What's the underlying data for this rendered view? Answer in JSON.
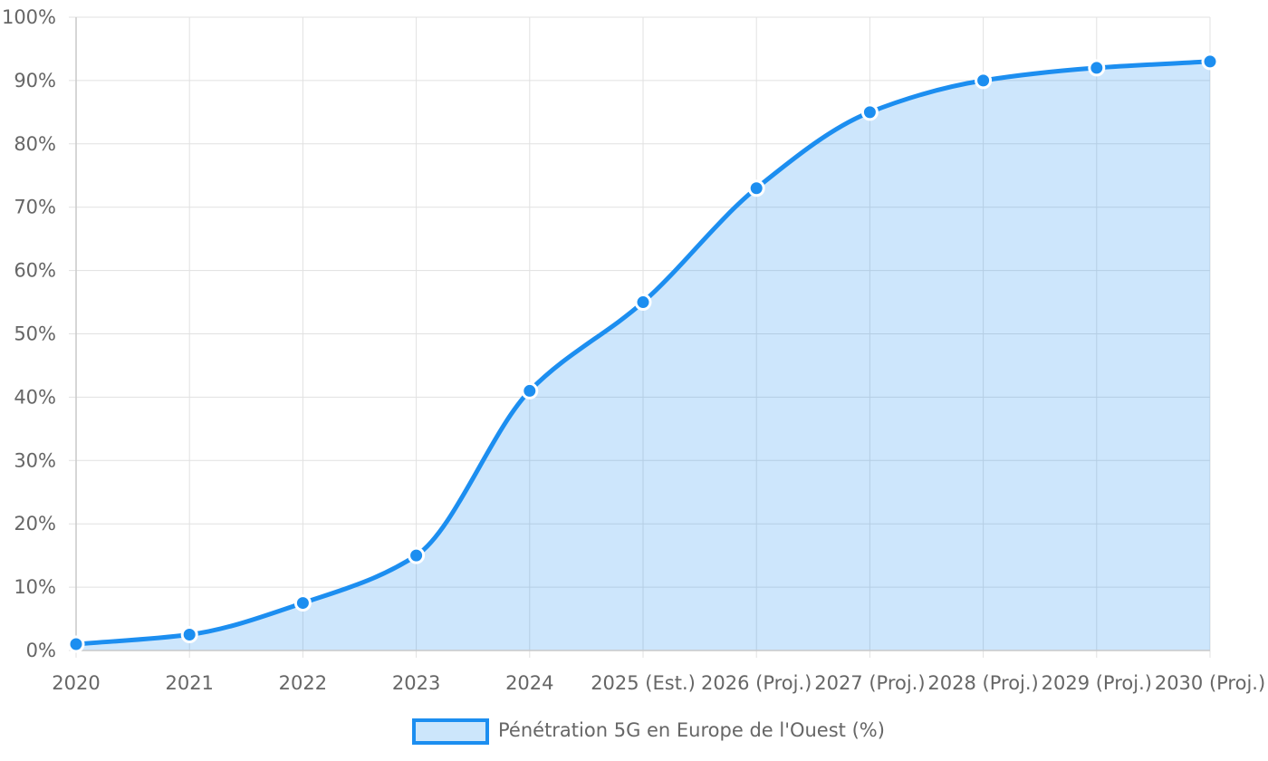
{
  "chart_data": {
    "type": "area",
    "x": [
      "2020",
      "2021",
      "2022",
      "2023",
      "2024",
      "2025 (Est.)",
      "2026 (Proj.)",
      "2027 (Proj.)",
      "2028 (Proj.)",
      "2029 (Proj.)",
      "2030 (Proj.)"
    ],
    "series": [
      {
        "name": "Pénétration 5G en Europe de l'Ouest (%)",
        "values": [
          1,
          2.5,
          7.5,
          15,
          41,
          55,
          73,
          85,
          90,
          92,
          93
        ]
      }
    ],
    "ylim": [
      0,
      100
    ],
    "y_ticks": [
      "0%",
      "10%",
      "20%",
      "30%",
      "40%",
      "50%",
      "60%",
      "70%",
      "80%",
      "90%",
      "100%"
    ],
    "grid": true,
    "legend_position": "bottom",
    "colors": {
      "line": "#1c8ef0",
      "fill": "#cce6fb",
      "grid": "#e1e1e1",
      "text": "#666666"
    }
  }
}
